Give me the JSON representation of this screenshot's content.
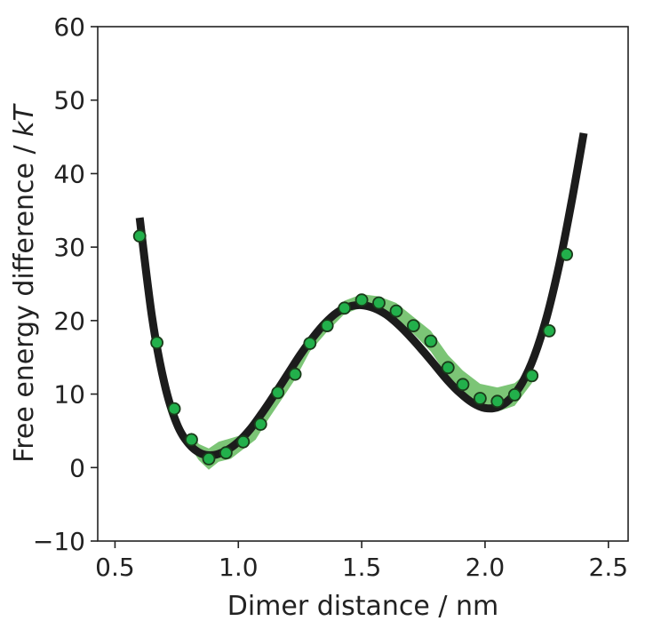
{
  "chart_data": {
    "type": "line",
    "xlabel": "Dimer distance / nm",
    "ylabel_prefix": "Free energy difference / ",
    "ylabel_italic": "kT",
    "xlim": [
      0.43,
      2.58
    ],
    "ylim": [
      -10,
      60
    ],
    "xticks": [
      "0.5",
      "1.0",
      "1.5",
      "2.0",
      "2.5"
    ],
    "yticks": [
      "−10",
      "0",
      "10",
      "20",
      "30",
      "40",
      "50",
      "60"
    ],
    "grid": false,
    "colors": {
      "curve": "#1c1c1c",
      "band": "#7cc576",
      "marker": "#22b04b",
      "marker_edge": "#1a3a1a",
      "axis": "#222222"
    },
    "series": [
      {
        "role": "fit-curve",
        "x": [
          0.6,
          0.65,
          0.7,
          0.75,
          0.8,
          0.85,
          0.9,
          0.95,
          1.0,
          1.05,
          1.1,
          1.15,
          1.2,
          1.25,
          1.3,
          1.35,
          1.4,
          1.45,
          1.5,
          1.55,
          1.6,
          1.65,
          1.7,
          1.75,
          1.8,
          1.85,
          1.9,
          1.95,
          2.0,
          2.05,
          2.1,
          2.15,
          2.2,
          2.25,
          2.3,
          2.35,
          2.4
        ],
        "y": [
          34.0,
          20.5,
          11.5,
          6.0,
          3.2,
          1.9,
          1.7,
          2.3,
          3.5,
          5.3,
          7.6,
          10.1,
          12.7,
          15.3,
          17.6,
          19.6,
          21.1,
          21.9,
          22.1,
          21.7,
          20.8,
          19.4,
          17.7,
          15.8,
          13.8,
          11.8,
          10.1,
          8.8,
          8.1,
          8.2,
          9.3,
          11.5,
          15.2,
          20.5,
          27.5,
          36.0,
          45.5
        ]
      },
      {
        "role": "data-points",
        "x": [
          0.6,
          0.67,
          0.74,
          0.81,
          0.88,
          0.95,
          1.02,
          1.09,
          1.16,
          1.23,
          1.29,
          1.36,
          1.43,
          1.5,
          1.57,
          1.64,
          1.71,
          1.78,
          1.85,
          1.91,
          1.98,
          2.05,
          2.12,
          2.19,
          2.26,
          2.33
        ],
        "y": [
          31.5,
          17.0,
          8.0,
          3.8,
          1.2,
          2.0,
          3.5,
          5.9,
          10.2,
          12.7,
          16.9,
          19.3,
          21.7,
          22.8,
          22.4,
          21.3,
          19.3,
          17.2,
          13.6,
          11.3,
          9.4,
          9.0,
          9.9,
          12.5,
          18.6,
          29.0
        ]
      }
    ],
    "uncertainty_band": {
      "x": [
        0.81,
        0.84,
        0.88,
        0.92,
        0.97,
        1.02,
        1.07,
        1.12,
        1.18,
        1.23,
        1.29,
        1.36,
        1.43,
        1.5,
        1.57,
        1.64,
        1.71,
        1.78,
        1.85,
        1.91,
        1.98,
        2.05,
        2.12,
        2.19
      ],
      "lower": [
        2.5,
        1.0,
        -0.3,
        0.8,
        1.2,
        2.5,
        3.8,
        6.5,
        9.5,
        12.0,
        15.8,
        18.5,
        20.9,
        21.8,
        21.5,
        20.2,
        18.2,
        15.8,
        12.3,
        10.0,
        8.0,
        7.6,
        8.4,
        11.5
      ],
      "upper": [
        4.8,
        3.2,
        2.6,
        3.5,
        4.0,
        4.5,
        6.5,
        9.0,
        11.3,
        14.0,
        18.0,
        20.4,
        22.7,
        23.6,
        23.3,
        22.4,
        20.5,
        18.6,
        15.3,
        13.2,
        11.4,
        10.9,
        11.5,
        13.5
      ]
    }
  }
}
